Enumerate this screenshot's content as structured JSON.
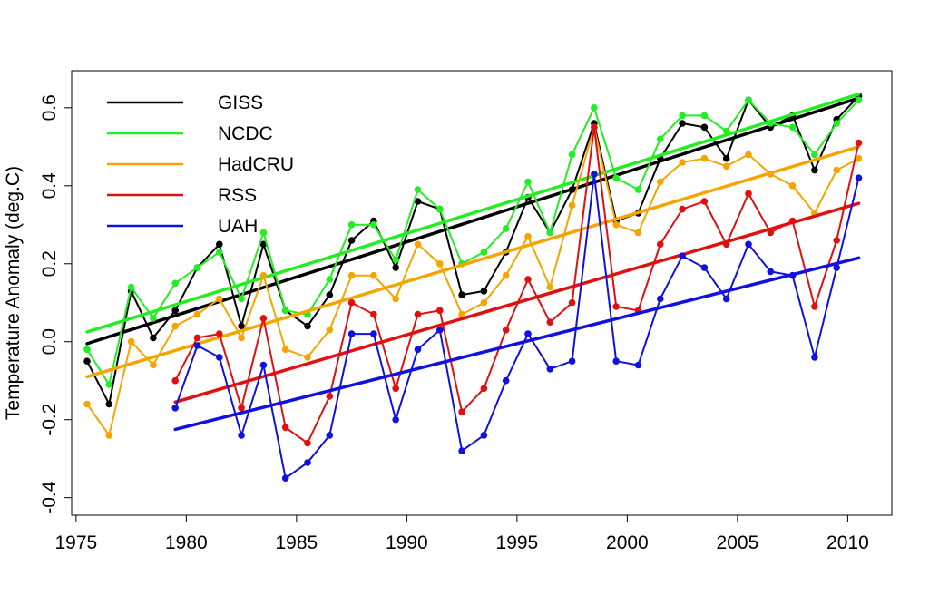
{
  "chart_data": {
    "type": "line",
    "title": "",
    "xlabel": "",
    "ylabel": "Temperature Anomaly (deg.C)",
    "xlim": [
      1974.8,
      2012.0
    ],
    "ylim": [
      -0.445,
      0.695
    ],
    "x_ticks": [
      1975,
      1980,
      1985,
      1990,
      1995,
      2000,
      2005,
      2010
    ],
    "y_ticks": [
      -0.4,
      -0.2,
      0.0,
      0.2,
      0.4,
      0.6
    ],
    "y_tick_labels": [
      "-0.4",
      "-0.2",
      "0.0",
      "0.2",
      "0.4",
      "0.6"
    ],
    "grid": false,
    "legend_position": "top-left",
    "series": [
      {
        "name": "GISS",
        "color": "#000000",
        "x": [
          1975.5,
          1976.5,
          1977.5,
          1978.5,
          1979.5,
          1980.5,
          1981.5,
          1982.5,
          1983.5,
          1984.5,
          1985.5,
          1986.5,
          1987.5,
          1988.5,
          1989.5,
          1990.5,
          1991.5,
          1992.5,
          1993.5,
          1994.5,
          1995.5,
          1996.5,
          1997.5,
          1998.5,
          1999.5,
          2000.5,
          2001.5,
          2002.5,
          2003.5,
          2004.5,
          2005.5,
          2006.5,
          2007.5,
          2008.5,
          2009.5,
          2010.5
        ],
        "values": [
          -0.05,
          -0.16,
          0.13,
          0.01,
          0.08,
          0.19,
          0.25,
          0.04,
          0.25,
          0.08,
          0.04,
          0.12,
          0.26,
          0.31,
          0.19,
          0.36,
          0.34,
          0.12,
          0.13,
          0.23,
          0.37,
          0.28,
          0.39,
          0.56,
          0.31,
          0.33,
          0.47,
          0.56,
          0.55,
          0.47,
          0.62,
          0.55,
          0.58,
          0.44,
          0.57,
          0.63
        ],
        "trend": [
          -0.005,
          0.625
        ]
      },
      {
        "name": "NCDC",
        "color": "#22ee22",
        "x": [
          1975.5,
          1976.5,
          1977.5,
          1978.5,
          1979.5,
          1980.5,
          1981.5,
          1982.5,
          1983.5,
          1984.5,
          1985.5,
          1986.5,
          1987.5,
          1988.5,
          1989.5,
          1990.5,
          1991.5,
          1992.5,
          1993.5,
          1994.5,
          1995.5,
          1996.5,
          1997.5,
          1998.5,
          1999.5,
          2000.5,
          2001.5,
          2002.5,
          2003.5,
          2004.5,
          2005.5,
          2006.5,
          2007.5,
          2008.5,
          2009.5,
          2010.5
        ],
        "values": [
          -0.02,
          -0.11,
          0.14,
          0.06,
          0.15,
          0.19,
          0.23,
          0.11,
          0.28,
          0.08,
          0.07,
          0.16,
          0.3,
          0.3,
          0.21,
          0.39,
          0.34,
          0.2,
          0.23,
          0.29,
          0.41,
          0.28,
          0.48,
          0.6,
          0.42,
          0.39,
          0.52,
          0.58,
          0.58,
          0.54,
          0.62,
          0.56,
          0.55,
          0.48,
          0.56,
          0.62
        ],
        "trend": [
          0.025,
          0.635
        ]
      },
      {
        "name": "HadCRU",
        "color": "#f5a500",
        "x": [
          1975.5,
          1976.5,
          1977.5,
          1978.5,
          1979.5,
          1980.5,
          1981.5,
          1982.5,
          1983.5,
          1984.5,
          1985.5,
          1986.5,
          1987.5,
          1988.5,
          1989.5,
          1990.5,
          1991.5,
          1992.5,
          1993.5,
          1994.5,
          1995.5,
          1996.5,
          1997.5,
          1998.5,
          1999.5,
          2000.5,
          2001.5,
          2002.5,
          2003.5,
          2004.5,
          2005.5,
          2006.5,
          2007.5,
          2008.5,
          2009.5,
          2010.5
        ],
        "values": [
          -0.16,
          -0.24,
          0.0,
          -0.06,
          0.04,
          0.07,
          0.11,
          0.01,
          0.17,
          -0.02,
          -0.04,
          0.03,
          0.17,
          0.17,
          0.11,
          0.25,
          0.2,
          0.07,
          0.1,
          0.17,
          0.27,
          0.14,
          0.35,
          0.55,
          0.3,
          0.28,
          0.41,
          0.46,
          0.47,
          0.45,
          0.48,
          0.43,
          0.4,
          0.33,
          0.44,
          0.47
        ],
        "trend": [
          -0.09,
          0.5
        ]
      },
      {
        "name": "RSS",
        "color": "#e01010",
        "x": [
          1979.5,
          1980.5,
          1981.5,
          1982.5,
          1983.5,
          1984.5,
          1985.5,
          1986.5,
          1987.5,
          1988.5,
          1989.5,
          1990.5,
          1991.5,
          1992.5,
          1993.5,
          1994.5,
          1995.5,
          1996.5,
          1997.5,
          1998.5,
          1999.5,
          2000.5,
          2001.5,
          2002.5,
          2003.5,
          2004.5,
          2005.5,
          2006.5,
          2007.5,
          2008.5,
          2009.5,
          2010.5
        ],
        "values": [
          -0.1,
          0.01,
          0.02,
          -0.17,
          0.06,
          -0.22,
          -0.26,
          -0.14,
          0.1,
          0.07,
          -0.12,
          0.07,
          0.08,
          -0.18,
          -0.12,
          0.03,
          0.16,
          0.05,
          0.1,
          0.55,
          0.09,
          0.08,
          0.25,
          0.34,
          0.36,
          0.25,
          0.38,
          0.28,
          0.31,
          0.09,
          0.26,
          0.51
        ],
        "trend": [
          -0.155,
          0.355
        ]
      },
      {
        "name": "UAH",
        "color": "#1010e0",
        "x": [
          1979.5,
          1980.5,
          1981.5,
          1982.5,
          1983.5,
          1984.5,
          1985.5,
          1986.5,
          1987.5,
          1988.5,
          1989.5,
          1990.5,
          1991.5,
          1992.5,
          1993.5,
          1994.5,
          1995.5,
          1996.5,
          1997.5,
          1998.5,
          1999.5,
          2000.5,
          2001.5,
          2002.5,
          2003.5,
          2004.5,
          2005.5,
          2006.5,
          2007.5,
          2008.5,
          2009.5,
          2010.5
        ],
        "values": [
          -0.17,
          -0.01,
          -0.04,
          -0.24,
          -0.06,
          -0.35,
          -0.31,
          -0.24,
          0.02,
          0.02,
          -0.2,
          -0.02,
          0.03,
          -0.28,
          -0.24,
          -0.1,
          0.02,
          -0.07,
          -0.05,
          0.43,
          -0.05,
          -0.06,
          0.11,
          0.22,
          0.19,
          0.11,
          0.25,
          0.18,
          0.17,
          -0.04,
          0.19,
          0.42
        ],
        "trend": [
          -0.225,
          0.215
        ]
      }
    ]
  }
}
